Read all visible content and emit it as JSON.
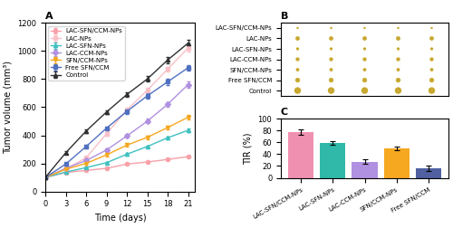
{
  "chart_data": [
    {
      "type": "line",
      "title": "A",
      "xlabel": "Time (days)",
      "ylabel": "Tumor volume (mm³)",
      "x": [
        0,
        3,
        6,
        9,
        12,
        15,
        18,
        21
      ],
      "xlim": [
        0,
        22
      ],
      "ylim": [
        0,
        1200
      ],
      "xticks": [
        0,
        3,
        6,
        9,
        12,
        15,
        18,
        21
      ],
      "yticks": [
        0,
        200,
        400,
        600,
        800,
        1000,
        1200
      ],
      "legend": "upper left",
      "series": [
        {
          "name": "LAC-SFN/CCM-NPs",
          "color": "#F8A0A8",
          "marker": "circle",
          "line_style": "solid",
          "values": [
            100,
            135,
            150,
            165,
            195,
            210,
            228,
            248
          ],
          "errors": [
            3,
            5,
            6,
            6,
            6,
            6,
            6,
            8
          ]
        },
        {
          "name": "LAC-NPs",
          "color": "#F9C0C8",
          "marker": "square",
          "line_style": "solid",
          "values": [
            100,
            160,
            240,
            410,
            580,
            720,
            870,
            1020
          ],
          "errors": [
            3,
            8,
            10,
            12,
            14,
            16,
            18,
            22
          ]
        },
        {
          "name": "LAC-SFN-NPs",
          "color": "#40C0C0",
          "marker": "triangle_up",
          "line_style": "solid",
          "values": [
            100,
            138,
            170,
            205,
            265,
            320,
            382,
            435
          ],
          "errors": [
            3,
            5,
            6,
            7,
            8,
            9,
            10,
            12
          ]
        },
        {
          "name": "LAC-CCM-NPs",
          "color": "#B090E0",
          "marker": "diamond",
          "line_style": "solid",
          "values": [
            100,
            165,
            220,
            295,
            395,
            500,
            620,
            760
          ],
          "errors": [
            3,
            8,
            10,
            12,
            14,
            16,
            18,
            22
          ]
        },
        {
          "name": "SFN/CCM-NPs",
          "color": "#F5A820",
          "marker": "triangle_down",
          "line_style": "solid",
          "values": [
            100,
            158,
            200,
            260,
            330,
            385,
            455,
            528
          ],
          "errors": [
            3,
            7,
            9,
            10,
            11,
            13,
            14,
            16
          ]
        },
        {
          "name": "Free SFN/CCM",
          "color": "#5070C0",
          "marker": "square",
          "line_style": "solid",
          "values": [
            100,
            195,
            320,
            450,
            570,
            680,
            780,
            880
          ],
          "errors": [
            3,
            10,
            12,
            14,
            16,
            18,
            20,
            22
          ]
        },
        {
          "name": "Control",
          "color": "#303030",
          "marker": "triangle_up",
          "line_style": "solid",
          "values": [
            100,
            275,
            430,
            565,
            690,
            800,
            935,
            1055
          ],
          "errors": [
            3,
            10,
            13,
            15,
            17,
            19,
            22,
            24
          ]
        }
      ]
    },
    {
      "type": "bubble",
      "title": "B",
      "categories": [
        "LAC-SFN/CCM-NPs",
        "LAC-NPs",
        "LAC-SFN-NPs",
        "LAC-CCM-NPs",
        "SFN/CCM-NPs",
        "Free SFN/CCM",
        "Control"
      ],
      "sizes": [
        0.28,
        0.55,
        0.38,
        0.5,
        0.44,
        0.6,
        0.85
      ],
      "replicates": 5,
      "color": "#C8A830",
      "tick_labels": "y"
    },
    {
      "type": "bar",
      "title": "C",
      "ylabel": "TIR (%)",
      "categories": [
        "LAC-SFN/CCM-NPs",
        "LAC-SFN-NPs",
        "LAC-CCM-NPs",
        "SFN/CCM-NPs",
        "Free SFN/CCM"
      ],
      "values": [
        77,
        59,
        27,
        49,
        16
      ],
      "errors": [
        4,
        3,
        4,
        3,
        4
      ],
      "colors": [
        "#F090B0",
        "#30B8A8",
        "#B090E0",
        "#F5A820",
        "#5060A0"
      ],
      "ylim": [
        0,
        100
      ],
      "yticks": [
        0,
        20,
        40,
        60,
        80,
        100
      ]
    }
  ]
}
